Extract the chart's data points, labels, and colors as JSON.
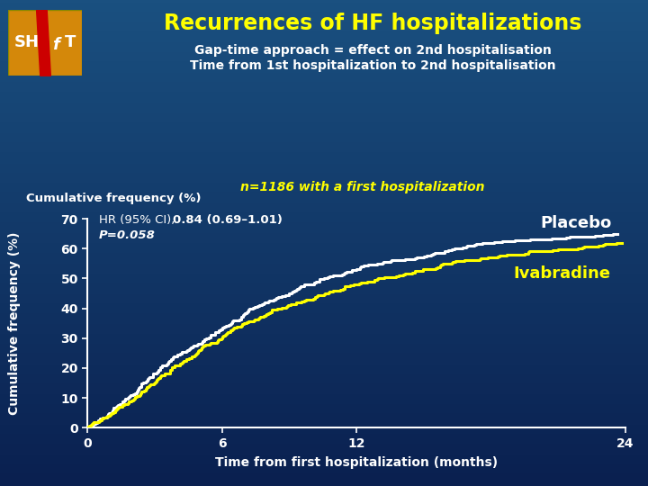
{
  "title": "Recurrences of HF hospitalizations",
  "subtitle1": "Gap-time approach = effect on 2nd hospitalisation",
  "subtitle2": "Time from 1st hospitalization to 2nd hospitalisation",
  "annotation": "n=1186 with a first hospitalization",
  "hr_text_normal": "HR (95% CI), ",
  "hr_text_bold": "0.84 (0.69–1.01)",
  "p_text": "P=0.058",
  "ylabel": "Cumulative frequency (%)",
  "xlabel": "Time from first hospitalization (months)",
  "placebo_label": "Placebo",
  "ivabradine_label": "Ivabradine",
  "title_color": "#ffff00",
  "subtitle_color": "#ffffff",
  "annotation_color": "#ffff00",
  "placebo_color": "#ffffff",
  "ivabradine_color": "#ffff00",
  "axis_color": "#ffffff",
  "tick_color": "#ffffff",
  "hr_color": "#ffffff",
  "p_color": "#ffffff",
  "xlim": [
    0,
    24
  ],
  "ylim": [
    0,
    70
  ],
  "xticks": [
    0,
    6,
    12,
    24
  ],
  "yticks": [
    0,
    10,
    20,
    30,
    40,
    50,
    60,
    70
  ],
  "placebo_times": [
    0,
    0.5,
    1,
    1.5,
    2,
    2.5,
    3,
    3.5,
    4,
    4.5,
    5,
    5.5,
    6,
    7,
    8,
    9,
    10,
    11,
    12,
    13,
    14,
    15,
    16,
    17,
    18,
    19,
    20,
    21,
    22,
    23,
    24
  ],
  "placebo_vals": [
    0,
    2.5,
    5,
    8,
    11,
    15,
    18,
    21,
    24,
    26,
    28,
    31,
    33,
    38,
    42,
    45,
    48,
    51,
    53,
    55,
    56,
    57,
    59,
    61,
    62,
    62.5,
    63,
    63.5,
    64,
    64.5,
    65
  ],
  "ivab_times": [
    0,
    0.5,
    1,
    1.5,
    2,
    2.5,
    3,
    3.5,
    4,
    4.5,
    5,
    5.5,
    6,
    7,
    8,
    9,
    10,
    11,
    12,
    13,
    14,
    15,
    16,
    17,
    18,
    19,
    20,
    21,
    22,
    23,
    24
  ],
  "ivab_vals": [
    0,
    2,
    4,
    7,
    9,
    12,
    15,
    18,
    21,
    23,
    26,
    28,
    30,
    35,
    38,
    41,
    43,
    46,
    48,
    50,
    51,
    53,
    55,
    56,
    57,
    58,
    59,
    59.5,
    60,
    61,
    62
  ]
}
